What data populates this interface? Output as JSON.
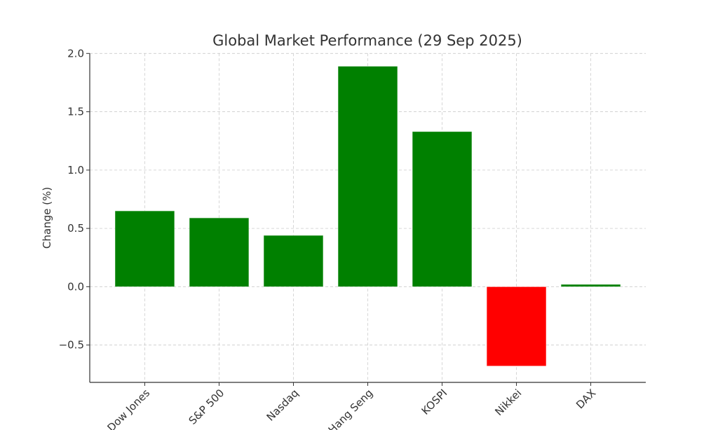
{
  "chart_data": {
    "type": "bar",
    "title": "Global Market Performance (29 Sep 2025)",
    "xlabel": "",
    "ylabel": "Change (%)",
    "categories": [
      "Dow Jones",
      "S&P 500",
      "Nasdaq",
      "Hang Seng",
      "KOSPI",
      "Nikkei",
      "DAX"
    ],
    "values": [
      0.65,
      0.59,
      0.44,
      1.89,
      1.33,
      -0.68,
      0.02
    ],
    "ylim": [
      -0.82,
      2.0
    ],
    "yticks": [
      -0.5,
      0.0,
      0.5,
      1.0,
      1.5,
      2.0
    ],
    "ytick_labels": [
      "−0.5",
      "0.0",
      "0.5",
      "1.0",
      "1.5",
      "2.0"
    ],
    "grid": true,
    "x_tick_rotation": 45,
    "colors": {
      "positive": "#008000",
      "negative": "#ff0000",
      "grid": "#cccccc",
      "axis": "#333333"
    }
  }
}
